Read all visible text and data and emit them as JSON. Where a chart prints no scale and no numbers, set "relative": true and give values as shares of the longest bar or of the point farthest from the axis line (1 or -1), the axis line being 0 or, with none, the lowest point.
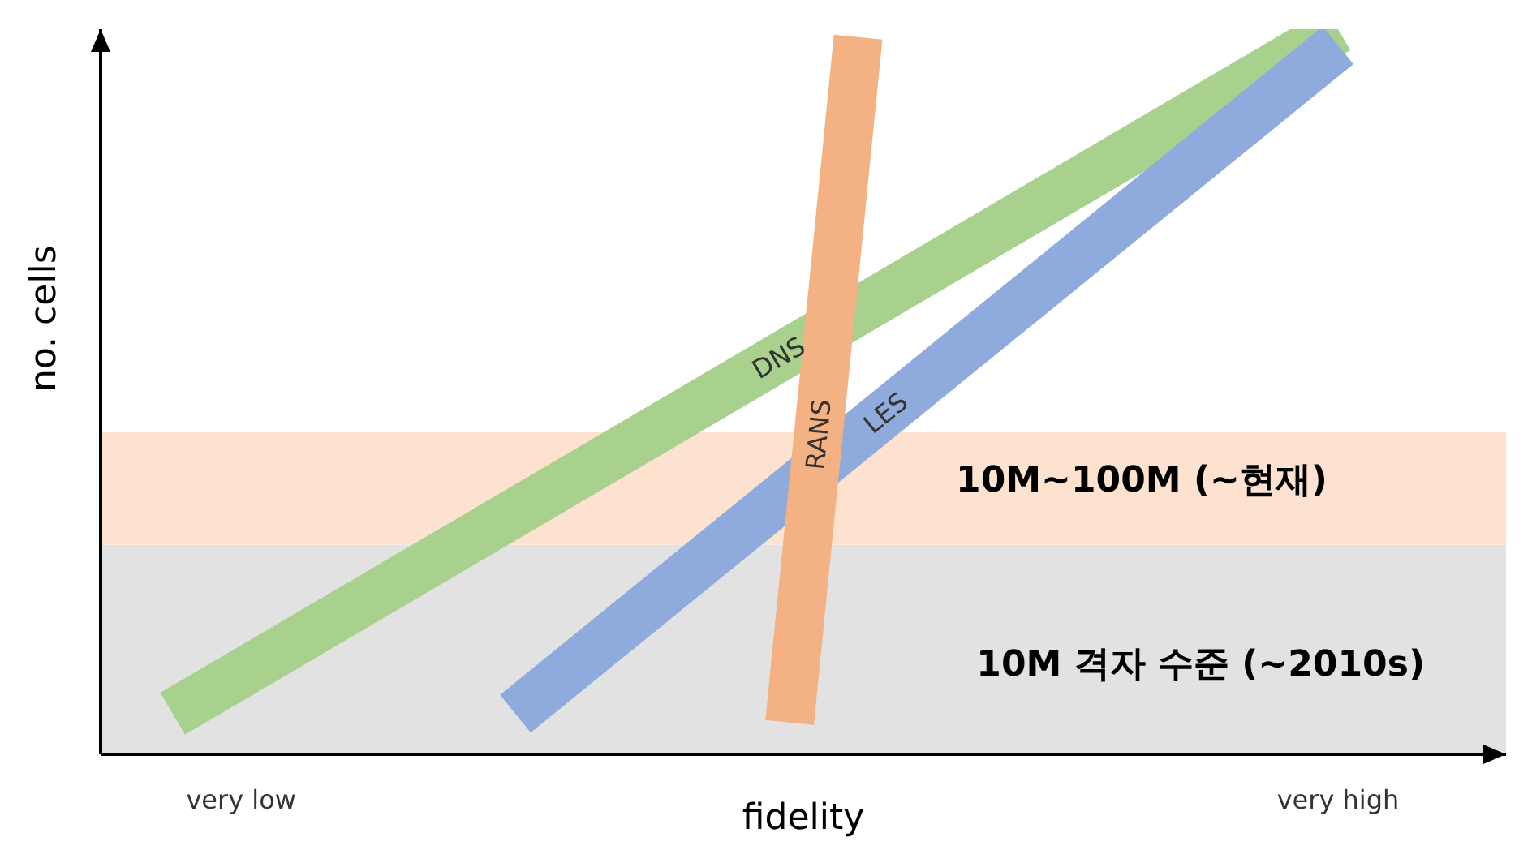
{
  "chart_data": {
    "type": "line",
    "relative": true,
    "xlabel": "fidelity",
    "ylabel": "no. cells",
    "categories": [
      null,
      "very low",
      null,
      null,
      null,
      null,
      null,
      null,
      null,
      null,
      null,
      null,
      null,
      null,
      null,
      null,
      null,
      "very high"
    ],
    "series": [
      {
        "name": "DNS",
        "color": "#a9d18e",
        "values": [
          0.056,
          null,
          null,
          null,
          null,
          null,
          null,
          null,
          null,
          null,
          null,
          null,
          null,
          null,
          null,
          null,
          null,
          1
        ]
      },
      {
        "name": "LES",
        "color": "#8faadc",
        "values": [
          null,
          null,
          null,
          null,
          null,
          0.056,
          null,
          null,
          null,
          null,
          null,
          null,
          null,
          null,
          null,
          null,
          null,
          0.978
        ]
      },
      {
        "name": "RANS",
        "color": "#f4b183",
        "values": [
          null,
          null,
          null,
          null,
          null,
          null,
          null,
          null,
          null,
          0.044,
          0.989,
          null,
          null,
          null,
          null,
          null,
          null,
          null
        ]
      }
    ],
    "bands": [
      {
        "axis": "y",
        "from": 0,
        "to": 0.289,
        "label": "10M 격자 수준 (~2010s)",
        "color": "#e2e2e2"
      },
      {
        "axis": "y",
        "from": 0.289,
        "to": 0.444,
        "label": "10M~100M (~현재)",
        "color": "#fde3cf"
      }
    ],
    "grid": false,
    "legend": false,
    "marker": "none",
    "line_style": "solid"
  }
}
